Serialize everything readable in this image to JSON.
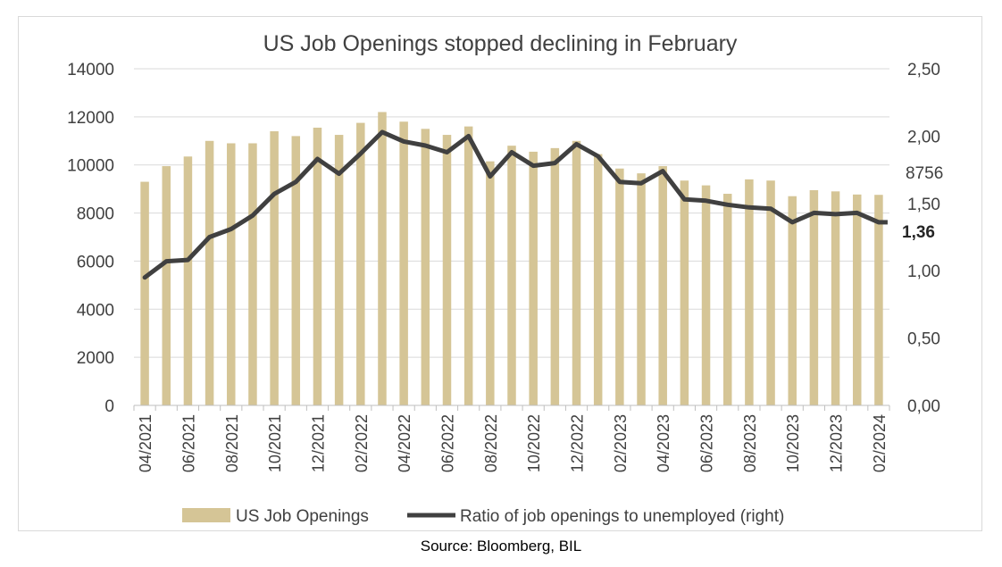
{
  "chart_data": {
    "type": "bar",
    "title": "US Job Openings stopped declining in February",
    "source": "Source: Bloomberg, BIL",
    "x": [
      "04/2021",
      "05/2021",
      "06/2021",
      "07/2021",
      "08/2021",
      "09/2021",
      "10/2021",
      "11/2021",
      "12/2021",
      "01/2022",
      "02/2022",
      "03/2022",
      "04/2022",
      "05/2022",
      "06/2022",
      "07/2022",
      "08/2022",
      "09/2022",
      "10/2022",
      "11/2022",
      "12/2022",
      "01/2023",
      "02/2023",
      "03/2023",
      "04/2023",
      "05/2023",
      "06/2023",
      "07/2023",
      "08/2023",
      "09/2023",
      "10/2023",
      "11/2023",
      "12/2023",
      "01/2024",
      "02/2024"
    ],
    "x_tick_labels": [
      "04/2021",
      "06/2021",
      "08/2021",
      "10/2021",
      "12/2021",
      "02/2022",
      "04/2022",
      "06/2022",
      "08/2022",
      "10/2022",
      "12/2022",
      "02/2023",
      "04/2023",
      "06/2023",
      "08/2023",
      "10/2023",
      "12/2023",
      "02/2024"
    ],
    "series": [
      {
        "name": "US Job Openings",
        "kind": "bar",
        "axis": "left",
        "color": "#d5c596",
        "values": [
          9300,
          9950,
          10350,
          11000,
          10900,
          10900,
          11400,
          11200,
          11550,
          11250,
          11750,
          12200,
          11800,
          11500,
          11250,
          11600,
          10150,
          10800,
          10550,
          10700,
          11000,
          10450,
          9850,
          9650,
          9950,
          9350,
          9150,
          8800,
          9400,
          9350,
          8700,
          8950,
          8900,
          8770,
          8756
        ]
      },
      {
        "name": "Ratio of job openings to unemployed (right)",
        "kind": "line",
        "axis": "right",
        "color": "#404040",
        "values": [
          0.95,
          1.07,
          1.08,
          1.25,
          1.31,
          1.41,
          1.57,
          1.66,
          1.83,
          1.72,
          1.87,
          2.03,
          1.96,
          1.93,
          1.88,
          2.0,
          1.7,
          1.88,
          1.78,
          1.8,
          1.94,
          1.85,
          1.66,
          1.65,
          1.74,
          1.53,
          1.52,
          1.49,
          1.47,
          1.46,
          1.36,
          1.43,
          1.42,
          1.43,
          1.36
        ]
      }
    ],
    "y_left": {
      "lim": [
        0,
        14000
      ],
      "ticks": [
        "0",
        "2000",
        "4000",
        "6000",
        "8000",
        "10000",
        "12000",
        "14000"
      ]
    },
    "y_right": {
      "lim": [
        0,
        2.5
      ],
      "ticks": [
        "0,00",
        "0,50",
        "1,00",
        "1,50",
        "2,00",
        "2,50"
      ]
    },
    "annotations": {
      "last_bar_label": "8756",
      "last_ratio_label": "1,36"
    },
    "grid": true,
    "legend_position": "bottom"
  }
}
